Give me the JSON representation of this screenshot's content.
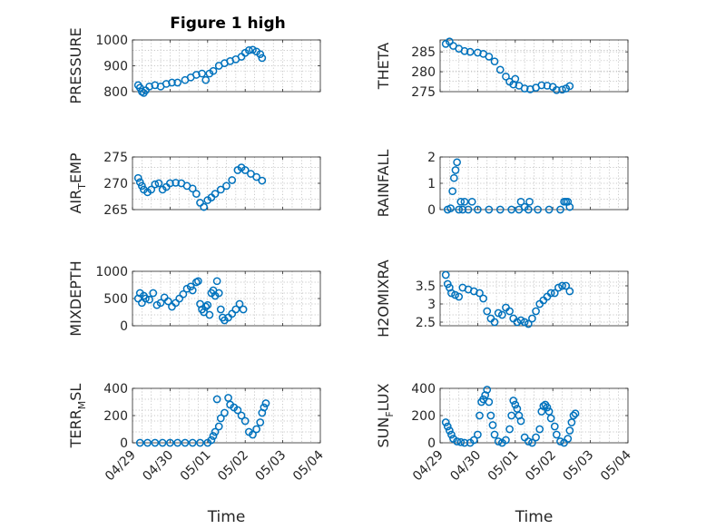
{
  "figure": {
    "title": "Figure 1 high",
    "marker_color": "#0072BD",
    "grid": "minor-dotted",
    "xticklabels": [
      "04/29",
      "04/30",
      "05/01",
      "05/02",
      "05/03",
      "05/04"
    ]
  },
  "chart_data": [
    {
      "type": "scatter",
      "ylabel": "PRESSURE",
      "ylabel_main": "PRESSURE",
      "ylabel_sub": "",
      "ylabel_rest": "",
      "ylim": [
        800,
        1000
      ],
      "yticks": [
        800,
        900,
        1000
      ],
      "xlim": [
        0,
        5
      ],
      "xlabel": "",
      "points": [
        [
          0.15,
          825
        ],
        [
          0.2,
          815
        ],
        [
          0.25,
          800
        ],
        [
          0.3,
          795
        ],
        [
          0.35,
          805
        ],
        [
          0.45,
          820
        ],
        [
          0.6,
          825
        ],
        [
          0.75,
          820
        ],
        [
          0.9,
          830
        ],
        [
          1.05,
          835
        ],
        [
          1.2,
          835
        ],
        [
          1.4,
          845
        ],
        [
          1.55,
          855
        ],
        [
          1.7,
          865
        ],
        [
          1.85,
          870
        ],
        [
          1.95,
          845
        ],
        [
          2.05,
          870
        ],
        [
          2.15,
          880
        ],
        [
          2.3,
          900
        ],
        [
          2.45,
          910
        ],
        [
          2.6,
          918
        ],
        [
          2.75,
          925
        ],
        [
          2.9,
          935
        ],
        [
          3.0,
          950
        ],
        [
          3.1,
          960
        ],
        [
          3.2,
          962
        ],
        [
          3.3,
          955
        ],
        [
          3.4,
          945
        ],
        [
          3.45,
          930
        ]
      ]
    },
    {
      "type": "scatter",
      "ylabel": "THETA",
      "ylabel_main": "THETA",
      "ylabel_sub": "",
      "ylabel_rest": "",
      "ylim": [
        275,
        288
      ],
      "yticks": [
        275,
        280,
        285
      ],
      "xlim": [
        0,
        5
      ],
      "xlabel": "",
      "points": [
        [
          0.15,
          287
        ],
        [
          0.25,
          287.6
        ],
        [
          0.35,
          286.5
        ],
        [
          0.5,
          285.8
        ],
        [
          0.65,
          285.2
        ],
        [
          0.8,
          285
        ],
        [
          1.0,
          284.8
        ],
        [
          1.15,
          284.5
        ],
        [
          1.3,
          283.8
        ],
        [
          1.45,
          282.6
        ],
        [
          1.6,
          280.5
        ],
        [
          1.75,
          278.8
        ],
        [
          1.85,
          277.5
        ],
        [
          1.95,
          276.8
        ],
        [
          2.0,
          278.2
        ],
        [
          2.1,
          276.5
        ],
        [
          2.25,
          275.8
        ],
        [
          2.4,
          275.6
        ],
        [
          2.55,
          276
        ],
        [
          2.7,
          276.6
        ],
        [
          2.85,
          276.5
        ],
        [
          3.0,
          276.2
        ],
        [
          3.1,
          275.4
        ],
        [
          3.25,
          275.5
        ],
        [
          3.35,
          275.8
        ],
        [
          3.45,
          276.4
        ]
      ]
    },
    {
      "type": "scatter",
      "ylabel": "AIR_TEMP",
      "ylabel_main": "AIR",
      "ylabel_sub": "T",
      "ylabel_rest": "EMP",
      "ylim": [
        265,
        275
      ],
      "yticks": [
        265,
        270,
        275
      ],
      "xlim": [
        0,
        5
      ],
      "xlabel": "",
      "points": [
        [
          0.15,
          271
        ],
        [
          0.2,
          270.2
        ],
        [
          0.25,
          269.5
        ],
        [
          0.3,
          268.8
        ],
        [
          0.4,
          268.3
        ],
        [
          0.5,
          268.8
        ],
        [
          0.6,
          269.8
        ],
        [
          0.7,
          270
        ],
        [
          0.8,
          268.8
        ],
        [
          0.9,
          269.3
        ],
        [
          1.0,
          270
        ],
        [
          1.15,
          270.1
        ],
        [
          1.3,
          270
        ],
        [
          1.45,
          269.5
        ],
        [
          1.6,
          269
        ],
        [
          1.7,
          268
        ],
        [
          1.8,
          266.3
        ],
        [
          1.9,
          265.5
        ],
        [
          2.0,
          266.8
        ],
        [
          2.1,
          267.3
        ],
        [
          2.2,
          268
        ],
        [
          2.35,
          268.8
        ],
        [
          2.5,
          269.5
        ],
        [
          2.65,
          270.6
        ],
        [
          2.8,
          272.5
        ],
        [
          2.9,
          273
        ],
        [
          3.0,
          272.5
        ],
        [
          3.15,
          271.8
        ],
        [
          3.3,
          271.2
        ],
        [
          3.45,
          270.5
        ]
      ]
    },
    {
      "type": "scatter",
      "ylabel": "RAINFALL",
      "ylabel_main": "RAINFALL",
      "ylabel_sub": "",
      "ylabel_rest": "",
      "ylim": [
        0,
        2
      ],
      "yticks": [
        0,
        1,
        2
      ],
      "xlim": [
        0,
        5
      ],
      "xlabel": "",
      "points": [
        [
          0.2,
          0
        ],
        [
          0.28,
          0.05
        ],
        [
          0.33,
          0.7
        ],
        [
          0.37,
          1.2
        ],
        [
          0.41,
          1.5
        ],
        [
          0.45,
          1.8
        ],
        [
          0.5,
          0
        ],
        [
          0.55,
          0.3
        ],
        [
          0.6,
          0
        ],
        [
          0.65,
          0.3
        ],
        [
          0.75,
          0
        ],
        [
          0.85,
          0.3
        ],
        [
          1.0,
          0
        ],
        [
          1.3,
          0
        ],
        [
          1.6,
          0
        ],
        [
          1.9,
          0
        ],
        [
          2.1,
          0
        ],
        [
          2.15,
          0.3
        ],
        [
          2.25,
          0.1
        ],
        [
          2.35,
          0
        ],
        [
          2.38,
          0.3
        ],
        [
          2.6,
          0
        ],
        [
          2.9,
          0
        ],
        [
          3.2,
          0
        ],
        [
          3.3,
          0.3
        ],
        [
          3.35,
          0.3
        ],
        [
          3.4,
          0.3
        ],
        [
          3.45,
          0.1
        ]
      ]
    },
    {
      "type": "scatter",
      "ylabel": "MIXDEPTH",
      "ylabel_main": "MIXDEPTH",
      "ylabel_sub": "",
      "ylabel_rest": "",
      "ylim": [
        0,
        1000
      ],
      "yticks": [
        0,
        500,
        1000
      ],
      "xlim": [
        0,
        5
      ],
      "xlabel": "",
      "points": [
        [
          0.15,
          500
        ],
        [
          0.2,
          600
        ],
        [
          0.25,
          420
        ],
        [
          0.3,
          550
        ],
        [
          0.35,
          500
        ],
        [
          0.45,
          480
        ],
        [
          0.55,
          600
        ],
        [
          0.65,
          380
        ],
        [
          0.75,
          420
        ],
        [
          0.85,
          520
        ],
        [
          0.95,
          450
        ],
        [
          1.05,
          350
        ],
        [
          1.15,
          420
        ],
        [
          1.25,
          500
        ],
        [
          1.35,
          580
        ],
        [
          1.45,
          680
        ],
        [
          1.55,
          720
        ],
        [
          1.6,
          650
        ],
        [
          1.7,
          800
        ],
        [
          1.75,
          820
        ],
        [
          1.8,
          400
        ],
        [
          1.85,
          300
        ],
        [
          1.9,
          250
        ],
        [
          1.95,
          350
        ],
        [
          2.0,
          380
        ],
        [
          2.05,
          200
        ],
        [
          2.1,
          600
        ],
        [
          2.15,
          650
        ],
        [
          2.2,
          550
        ],
        [
          2.25,
          820
        ],
        [
          2.3,
          600
        ],
        [
          2.35,
          300
        ],
        [
          2.4,
          150
        ],
        [
          2.45,
          100
        ],
        [
          2.55,
          150
        ],
        [
          2.65,
          220
        ],
        [
          2.75,
          300
        ],
        [
          2.85,
          400
        ],
        [
          2.95,
          300
        ]
      ]
    },
    {
      "type": "scatter",
      "ylabel": "H2OMIXRA",
      "ylabel_main": "H2OMIXRA",
      "ylabel_sub": "",
      "ylabel_rest": "",
      "ylim": [
        2.4,
        3.9
      ],
      "yticks": [
        2.5,
        3,
        3.5
      ],
      "xlim": [
        0,
        5
      ],
      "xlabel": "",
      "points": [
        [
          0.15,
          3.8
        ],
        [
          0.2,
          3.55
        ],
        [
          0.25,
          3.45
        ],
        [
          0.3,
          3.3
        ],
        [
          0.4,
          3.25
        ],
        [
          0.5,
          3.2
        ],
        [
          0.6,
          3.45
        ],
        [
          0.75,
          3.4
        ],
        [
          0.9,
          3.35
        ],
        [
          1.05,
          3.3
        ],
        [
          1.15,
          3.15
        ],
        [
          1.25,
          2.8
        ],
        [
          1.35,
          2.6
        ],
        [
          1.45,
          2.5
        ],
        [
          1.55,
          2.75
        ],
        [
          1.65,
          2.7
        ],
        [
          1.75,
          2.9
        ],
        [
          1.85,
          2.8
        ],
        [
          1.95,
          2.6
        ],
        [
          2.05,
          2.5
        ],
        [
          2.15,
          2.55
        ],
        [
          2.25,
          2.5
        ],
        [
          2.35,
          2.45
        ],
        [
          2.45,
          2.6
        ],
        [
          2.55,
          2.8
        ],
        [
          2.65,
          3.0
        ],
        [
          2.75,
          3.1
        ],
        [
          2.85,
          3.2
        ],
        [
          2.95,
          3.3
        ],
        [
          3.05,
          3.3
        ],
        [
          3.15,
          3.45
        ],
        [
          3.25,
          3.5
        ],
        [
          3.35,
          3.5
        ],
        [
          3.45,
          3.35
        ]
      ]
    },
    {
      "type": "scatter",
      "ylabel": "TERR_MSL",
      "ylabel_main": "TERR",
      "ylabel_sub": "M",
      "ylabel_rest": "SL",
      "ylim": [
        0,
        400
      ],
      "yticks": [
        0,
        200,
        400
      ],
      "xlim": [
        0,
        5
      ],
      "xlabel": "Time",
      "points": [
        [
          0.2,
          0
        ],
        [
          0.4,
          0
        ],
        [
          0.6,
          0
        ],
        [
          0.8,
          0
        ],
        [
          1.0,
          0
        ],
        [
          1.2,
          0
        ],
        [
          1.4,
          0
        ],
        [
          1.6,
          0
        ],
        [
          1.8,
          0
        ],
        [
          2.0,
          0
        ],
        [
          2.1,
          20
        ],
        [
          2.15,
          50
        ],
        [
          2.2,
          80
        ],
        [
          2.25,
          320
        ],
        [
          2.3,
          120
        ],
        [
          2.35,
          180
        ],
        [
          2.45,
          220
        ],
        [
          2.55,
          330
        ],
        [
          2.6,
          280
        ],
        [
          2.7,
          260
        ],
        [
          2.8,
          240
        ],
        [
          2.9,
          200
        ],
        [
          3.0,
          160
        ],
        [
          3.1,
          80
        ],
        [
          3.2,
          60
        ],
        [
          3.3,
          100
        ],
        [
          3.4,
          150
        ],
        [
          3.45,
          220
        ],
        [
          3.5,
          260
        ],
        [
          3.55,
          290
        ]
      ]
    },
    {
      "type": "scatter",
      "ylabel": "SUN_FLUX",
      "ylabel_main": "SUN",
      "ylabel_sub": "F",
      "ylabel_rest": "LUX",
      "ylim": [
        0,
        400
      ],
      "yticks": [
        0,
        200,
        400
      ],
      "xlim": [
        0,
        5
      ],
      "xlabel": "Time",
      "points": [
        [
          0.15,
          150
        ],
        [
          0.2,
          120
        ],
        [
          0.25,
          90
        ],
        [
          0.3,
          60
        ],
        [
          0.35,
          30
        ],
        [
          0.45,
          10
        ],
        [
          0.55,
          5
        ],
        [
          0.65,
          0
        ],
        [
          0.8,
          0
        ],
        [
          0.9,
          20
        ],
        [
          1.0,
          60
        ],
        [
          1.05,
          200
        ],
        [
          1.1,
          300
        ],
        [
          1.15,
          320
        ],
        [
          1.2,
          350
        ],
        [
          1.25,
          390
        ],
        [
          1.3,
          300
        ],
        [
          1.35,
          200
        ],
        [
          1.4,
          130
        ],
        [
          1.45,
          60
        ],
        [
          1.55,
          10
        ],
        [
          1.65,
          0
        ],
        [
          1.75,
          20
        ],
        [
          1.85,
          100
        ],
        [
          1.9,
          200
        ],
        [
          1.95,
          310
        ],
        [
          2.0,
          280
        ],
        [
          2.05,
          250
        ],
        [
          2.1,
          200
        ],
        [
          2.15,
          160
        ],
        [
          2.25,
          40
        ],
        [
          2.35,
          10
        ],
        [
          2.45,
          0
        ],
        [
          2.55,
          40
        ],
        [
          2.65,
          100
        ],
        [
          2.7,
          230
        ],
        [
          2.75,
          270
        ],
        [
          2.8,
          280
        ],
        [
          2.85,
          260
        ],
        [
          2.9,
          230
        ],
        [
          2.95,
          180
        ],
        [
          3.05,
          120
        ],
        [
          3.1,
          60
        ],
        [
          3.2,
          10
        ],
        [
          3.3,
          0
        ],
        [
          3.4,
          30
        ],
        [
          3.45,
          90
        ],
        [
          3.5,
          150
        ],
        [
          3.55,
          200
        ],
        [
          3.6,
          215
        ]
      ]
    }
  ]
}
